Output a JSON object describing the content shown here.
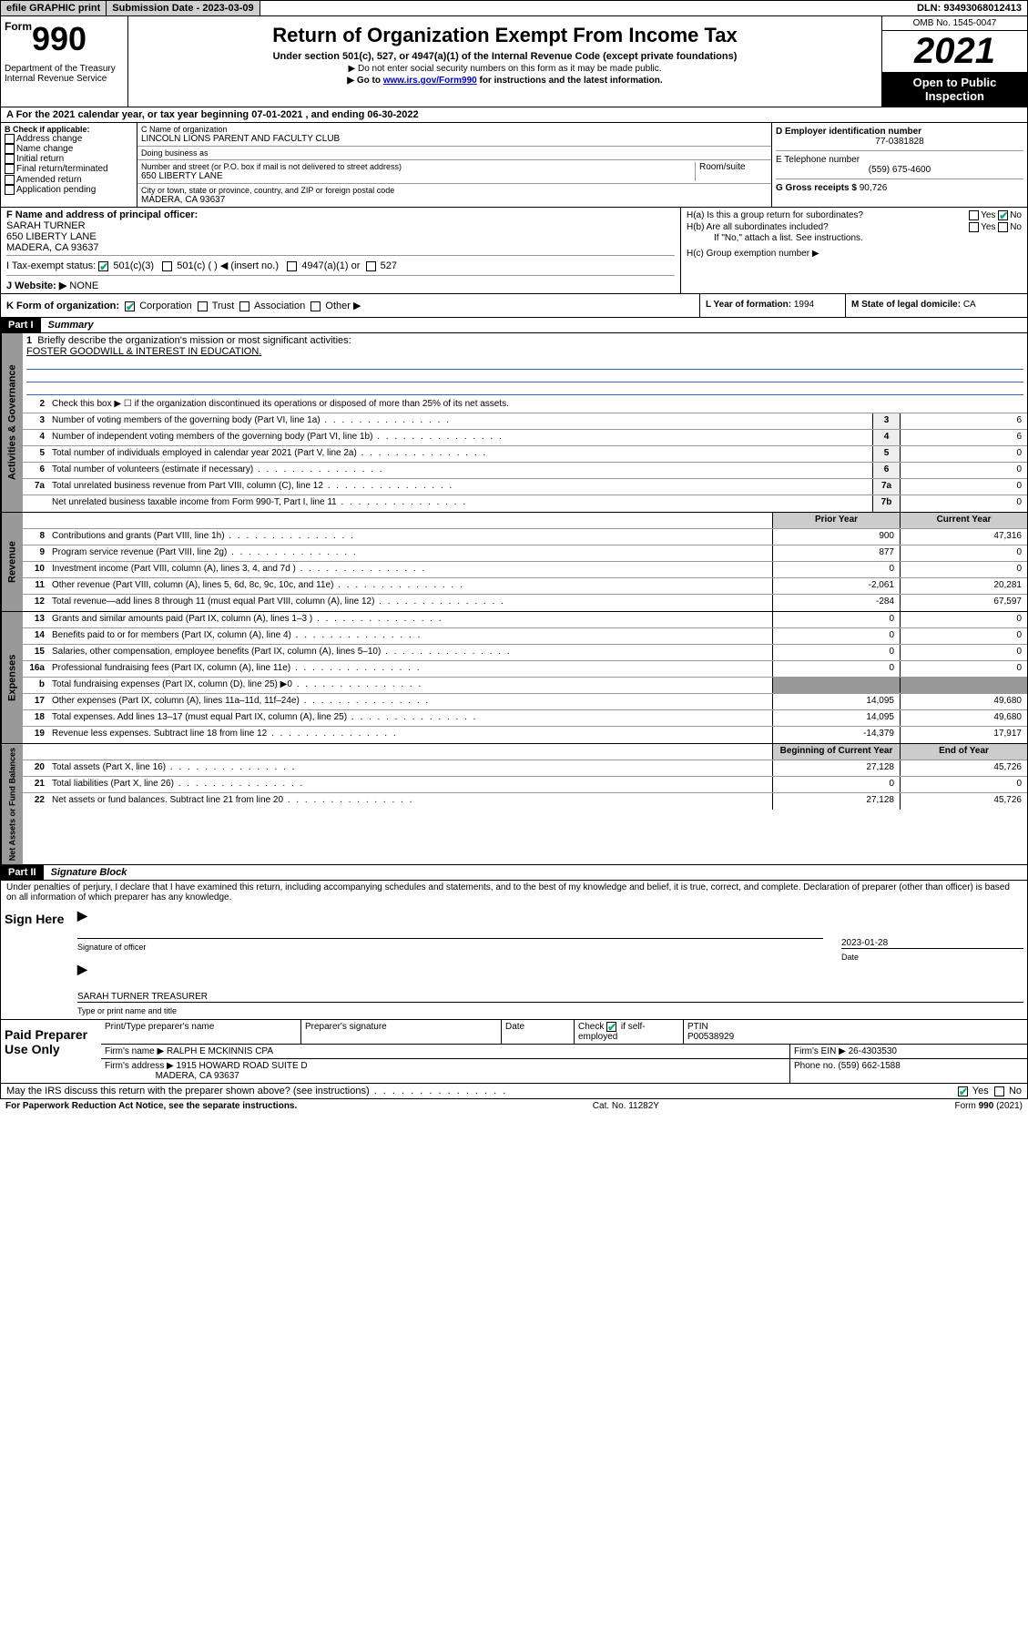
{
  "topbar": {
    "efile": "efile GRAPHIC print",
    "subdate_label": "Submission Date - ",
    "subdate": "2023-03-09",
    "dln_label": "DLN: ",
    "dln": "93493068012413"
  },
  "header": {
    "form": "Form",
    "num": "990",
    "dept": "Department of the Treasury Internal Revenue Service",
    "title": "Return of Organization Exempt From Income Tax",
    "sub1": "Under section 501(c), 527, or 4947(a)(1) of the Internal Revenue Code (except private foundations)",
    "sub2": "▶ Do not enter social security numbers on this form as it may be made public.",
    "sub3a": "▶ Go to ",
    "sub3link": "www.irs.gov/Form990",
    "sub3b": " for instructions and the latest information.",
    "omb": "OMB No. 1545-0047",
    "year": "2021",
    "inspect": "Open to Public Inspection"
  },
  "periodA": {
    "label": "A For the 2021 calendar year, or tax year beginning ",
    "begin": "07-01-2021",
    "mid": " , and ending ",
    "end": "06-30-2022"
  },
  "boxB": {
    "label": "B Check if applicable:",
    "items": [
      "Address change",
      "Name change",
      "Initial return",
      "Final return/terminated",
      "Amended return",
      "Application pending"
    ]
  },
  "boxC": {
    "name_lbl": "C Name of organization",
    "name": "LINCOLN LIONS PARENT AND FACULTY CLUB",
    "dba_lbl": "Doing business as",
    "dba": "",
    "addr_lbl": "Number and street (or P.O. box if mail is not delivered to street address)",
    "room_lbl": "Room/suite",
    "addr": "650 LIBERTY LANE",
    "city_lbl": "City or town, state or province, country, and ZIP or foreign postal code",
    "city": "MADERA, CA  93637"
  },
  "boxD": {
    "lbl": "D Employer identification number",
    "val": "77-0381828"
  },
  "boxE": {
    "lbl": "E Telephone number",
    "val": "(559) 675-4600"
  },
  "boxG": {
    "lbl": "G Gross receipts $ ",
    "val": "90,726"
  },
  "boxF": {
    "lbl": "F Name and address of principal officer:",
    "name": "SARAH TURNER",
    "addr1": "650 LIBERTY LANE",
    "addr2": "MADERA, CA  93637"
  },
  "boxH": {
    "a_lbl": "H(a)  Is this a group return for subordinates?",
    "a_yes": "Yes",
    "a_no": "No",
    "b_lbl": "H(b)  Are all subordinates included?",
    "b_yes": "Yes",
    "b_no": "No",
    "note": "If \"No,\" attach a list. See instructions.",
    "c_lbl": "H(c)  Group exemption number ▶"
  },
  "boxI": {
    "lbl": "I   Tax-exempt status:",
    "opt1": "501(c)(3)",
    "opt2": "501(c) (  ) ◀ (insert no.)",
    "opt3": "4947(a)(1) or",
    "opt4": "527"
  },
  "boxJ": {
    "lbl": "J   Website: ▶",
    "val": "NONE"
  },
  "boxK": {
    "lbl": "K Form of organization:",
    "opts": [
      "Corporation",
      "Trust",
      "Association",
      "Other ▶"
    ],
    "L_lbl": "L Year of formation: ",
    "L_val": "1994",
    "M_lbl": "M State of legal domicile: ",
    "M_val": "CA"
  },
  "part1": {
    "hdr": "Part I",
    "title": "Summary",
    "l1_lbl": "Briefly describe the organization's mission or most significant activities:",
    "l1_val": "FOSTER GOODWILL & INTEREST IN EDUCATION.",
    "l2": "Check this box ▶ ☐  if the organization discontinued its operations or disposed of more than 25% of its net assets.",
    "rows_gov": [
      {
        "n": "3",
        "t": "Number of voting members of the governing body (Part VI, line 1a)",
        "c": "3",
        "v": "6"
      },
      {
        "n": "4",
        "t": "Number of independent voting members of the governing body (Part VI, line 1b)",
        "c": "4",
        "v": "6"
      },
      {
        "n": "5",
        "t": "Total number of individuals employed in calendar year 2021 (Part V, line 2a)",
        "c": "5",
        "v": "0"
      },
      {
        "n": "6",
        "t": "Total number of volunteers (estimate if necessary)",
        "c": "6",
        "v": "0"
      },
      {
        "n": "7a",
        "t": "Total unrelated business revenue from Part VIII, column (C), line 12",
        "c": "7a",
        "v": "0"
      },
      {
        "n": "",
        "t": "Net unrelated business taxable income from Form 990-T, Part I, line 11",
        "c": "7b",
        "v": "0"
      }
    ],
    "col_prior": "Prior Year",
    "col_curr": "Current Year",
    "rows_rev": [
      {
        "n": "8",
        "t": "Contributions and grants (Part VIII, line 1h)",
        "p": "900",
        "c": "47,316"
      },
      {
        "n": "9",
        "t": "Program service revenue (Part VIII, line 2g)",
        "p": "877",
        "c": "0"
      },
      {
        "n": "10",
        "t": "Investment income (Part VIII, column (A), lines 3, 4, and 7d )",
        "p": "0",
        "c": "0"
      },
      {
        "n": "11",
        "t": "Other revenue (Part VIII, column (A), lines 5, 6d, 8c, 9c, 10c, and 11e)",
        "p": "-2,061",
        "c": "20,281"
      },
      {
        "n": "12",
        "t": "Total revenue—add lines 8 through 11 (must equal Part VIII, column (A), line 12)",
        "p": "-284",
        "c": "67,597"
      }
    ],
    "rows_exp": [
      {
        "n": "13",
        "t": "Grants and similar amounts paid (Part IX, column (A), lines 1–3 )",
        "p": "0",
        "c": "0"
      },
      {
        "n": "14",
        "t": "Benefits paid to or for members (Part IX, column (A), line 4)",
        "p": "0",
        "c": "0"
      },
      {
        "n": "15",
        "t": "Salaries, other compensation, employee benefits (Part IX, column (A), lines 5–10)",
        "p": "0",
        "c": "0"
      },
      {
        "n": "16a",
        "t": "Professional fundraising fees (Part IX, column (A), line 11e)",
        "p": "0",
        "c": "0"
      },
      {
        "n": "b",
        "t": "Total fundraising expenses (Part IX, column (D), line 25) ▶0",
        "p": "",
        "c": "",
        "shade": true
      },
      {
        "n": "17",
        "t": "Other expenses (Part IX, column (A), lines 11a–11d, 11f–24e)",
        "p": "14,095",
        "c": "49,680"
      },
      {
        "n": "18",
        "t": "Total expenses. Add lines 13–17 (must equal Part IX, column (A), line 25)",
        "p": "14,095",
        "c": "49,680"
      },
      {
        "n": "19",
        "t": "Revenue less expenses. Subtract line 18 from line 12",
        "p": "-14,379",
        "c": "17,917"
      }
    ],
    "col_begin": "Beginning of Current Year",
    "col_end": "End of Year",
    "rows_net": [
      {
        "n": "20",
        "t": "Total assets (Part X, line 16)",
        "p": "27,128",
        "c": "45,726"
      },
      {
        "n": "21",
        "t": "Total liabilities (Part X, line 26)",
        "p": "0",
        "c": "0"
      },
      {
        "n": "22",
        "t": "Net assets or fund balances. Subtract line 21 from line 20",
        "p": "27,128",
        "c": "45,726"
      }
    ],
    "tab_gov": "Activities & Governance",
    "tab_rev": "Revenue",
    "tab_exp": "Expenses",
    "tab_net": "Net Assets or Fund Balances"
  },
  "part2": {
    "hdr": "Part II",
    "title": "Signature Block",
    "penalty": "Under penalties of perjury, I declare that I have examined this return, including accompanying schedules and statements, and to the best of my knowledge and belief, it is true, correct, and complete. Declaration of preparer (other than officer) is based on all information of which preparer has any knowledge.",
    "sign_here": "Sign Here",
    "sig_of": "Signature of officer",
    "date_lbl": "Date",
    "date": "2023-01-28",
    "name_title": "SARAH TURNER  TREASURER",
    "type_lbl": "Type or print name and title",
    "paid": "Paid Preparer Use Only",
    "ph1": "Print/Type preparer's name",
    "ph2": "Preparer's signature",
    "ph3": "Date",
    "ph4_lbl": "Check",
    "ph4_txt": " if self-employed",
    "ptin_lbl": "PTIN",
    "ptin": "P00538929",
    "firm_lbl": "Firm's name   ▶",
    "firm": "RALPH E MCKINNIS CPA",
    "ein_lbl": "Firm's EIN ▶",
    "ein": "26-4303530",
    "faddr_lbl": "Firm's address ▶",
    "faddr1": "1915 HOWARD ROAD SUITE D",
    "faddr2": "MADERA, CA  93637",
    "phone_lbl": "Phone no. ",
    "phone": "(559) 662-1588",
    "discuss": "May the IRS discuss this return with the preparer shown above? (see instructions)",
    "d_yes": "Yes",
    "d_no": "No"
  },
  "footer": {
    "pra": "For Paperwork Reduction Act Notice, see the separate instructions.",
    "cat": "Cat. No. 11282Y",
    "formno": "Form 990 (2021)"
  }
}
